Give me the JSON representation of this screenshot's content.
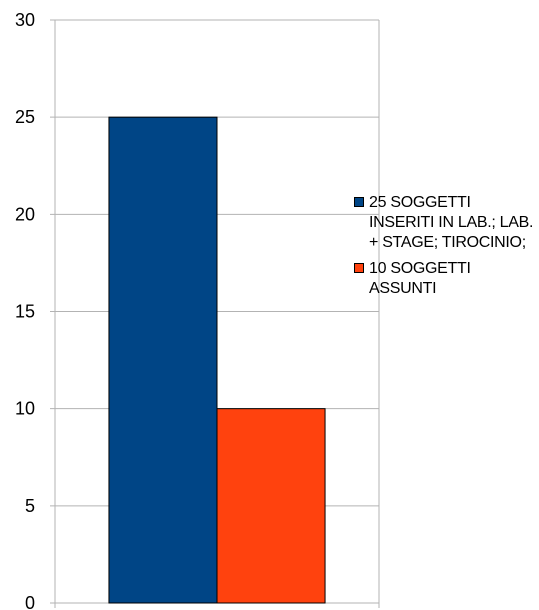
{
  "chart_data": {
    "type": "bar",
    "categories": [
      ""
    ],
    "series": [
      {
        "name": "25 SOGGETTI INSERITI IN LAB.; LAB. + STAGE; TIROCINIO;",
        "values": [
          25
        ],
        "color": "#004586"
      },
      {
        "name": "10 SOGGETTI ASSUNTI",
        "values": [
          10
        ],
        "color": "#ff420e"
      }
    ],
    "title": "",
    "xlabel": "",
    "ylabel": "",
    "ylim": [
      0,
      30
    ],
    "yticks": [
      "0",
      "5",
      "10",
      "15",
      "20",
      "25",
      "30"
    ],
    "grid": true,
    "legend_position": "right"
  },
  "colors": {
    "grid": "#b3b3b3",
    "axis": "#b3b3b3",
    "bar_border": "#000000"
  }
}
